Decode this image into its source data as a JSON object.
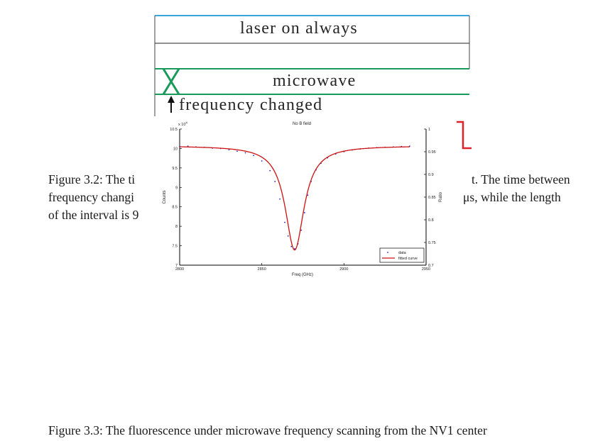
{
  "timing_diagram": {
    "laser_label": "laser on always",
    "microwave_label": "microwave",
    "frequency_label": "frequency changed"
  },
  "figure_3_2": {
    "caption_lines": [
      "Figure 3.2: The ti",
      "frequency changi",
      "of the interval is 9"
    ],
    "caption_right_lines": [
      "t. The time between",
      "μs, while the length"
    ]
  },
  "plot": {
    "title": "No B field",
    "xlabel": "Freq (GHz)",
    "ylabel_left": "Counts",
    "ylabel_right": "Ratio",
    "exponent_label": "x 10",
    "exponent_power": "4",
    "legend": {
      "data_label": "data",
      "fit_label": "fitted curve"
    },
    "x_ticks": [
      "2800",
      "2850",
      "2900",
      "2950"
    ],
    "y_left_ticks": [
      "7",
      "7.5",
      "8",
      "8.5",
      "9",
      "9.5",
      "10",
      "10.5"
    ],
    "y_right_ticks": [
      "0.7",
      "0.75",
      "0.8",
      "0.85",
      "0.9",
      "0.95",
      "1"
    ]
  },
  "figure_3_3": {
    "caption": "Figure 3.3: The fluorescence under microwave frequency scanning from the NV1 center"
  },
  "chart_data": {
    "type": "scatter",
    "title": "No B field",
    "xlabel": "Freq (GHz)",
    "ylabel": "Counts",
    "y_scale_multiplier": "x 10^4",
    "xlim": [
      2800,
      2950
    ],
    "ylim": [
      7,
      10.5
    ],
    "ylim_right": [
      0.7,
      1.0
    ],
    "ylabel_right": "Ratio",
    "legend_position": "bottom-right",
    "grid": false,
    "series": [
      {
        "name": "data",
        "style": "dots",
        "color": "#2222cc",
        "x": [
          2800,
          2805,
          2810,
          2815,
          2820,
          2825,
          2830,
          2835,
          2840,
          2845,
          2850,
          2855,
          2858,
          2861,
          2864,
          2866,
          2868,
          2870,
          2872,
          2874,
          2876,
          2878,
          2880,
          2883,
          2886,
          2890,
          2895,
          2900,
          2905,
          2910,
          2915,
          2920,
          2925,
          2930,
          2935,
          2940
        ],
        "y": [
          10.05,
          10.06,
          10.04,
          10.03,
          10.01,
          10.0,
          9.97,
          9.93,
          9.89,
          9.82,
          9.68,
          9.43,
          9.15,
          8.7,
          8.1,
          7.75,
          7.48,
          7.42,
          7.55,
          7.9,
          8.35,
          8.8,
          9.15,
          9.45,
          9.62,
          9.76,
          9.86,
          9.92,
          9.96,
          9.99,
          10.01,
          10.02,
          10.03,
          10.04,
          10.05,
          10.06
        ]
      },
      {
        "name": "fitted curve",
        "style": "line",
        "color": "#cc1111",
        "model": "lorentzian",
        "baseline": 10.07,
        "depth": 2.68,
        "center": 2870,
        "hwhm": 7
      }
    ]
  }
}
